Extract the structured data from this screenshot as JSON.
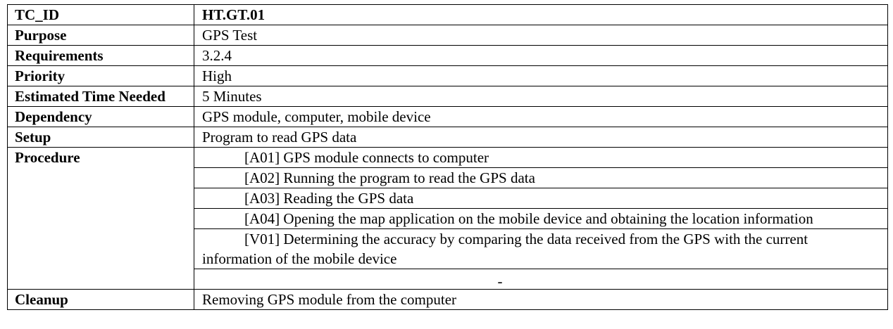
{
  "rows": [
    {
      "label": "TC_ID",
      "value": "HT.GT.01"
    },
    {
      "label": "Purpose",
      "value": "GPS Test"
    },
    {
      "label": "Requirements",
      "value": "3.2.4"
    },
    {
      "label": "Priority",
      "value": "High"
    },
    {
      "label": "Estimated Time Needed",
      "value": "5 Minutes"
    },
    {
      "label": "Dependency",
      "value": "GPS module, computer, mobile device"
    },
    {
      "label": "Setup",
      "value": "Program to read GPS data"
    }
  ],
  "procedure": {
    "label": "Procedure",
    "steps": [
      "[A01] GPS module connects to computer",
      "[A02] Running the program to read the GPS data",
      "[A03] Reading the GPS data",
      "[A04] Opening the map application on the mobile device and obtaining the location information",
      "[V01] Determining the accuracy by comparing the data received from the GPS with the current information of the mobile device",
      "-"
    ]
  },
  "cleanup": {
    "label": "Cleanup",
    "value": "Removing GPS module from the computer"
  }
}
